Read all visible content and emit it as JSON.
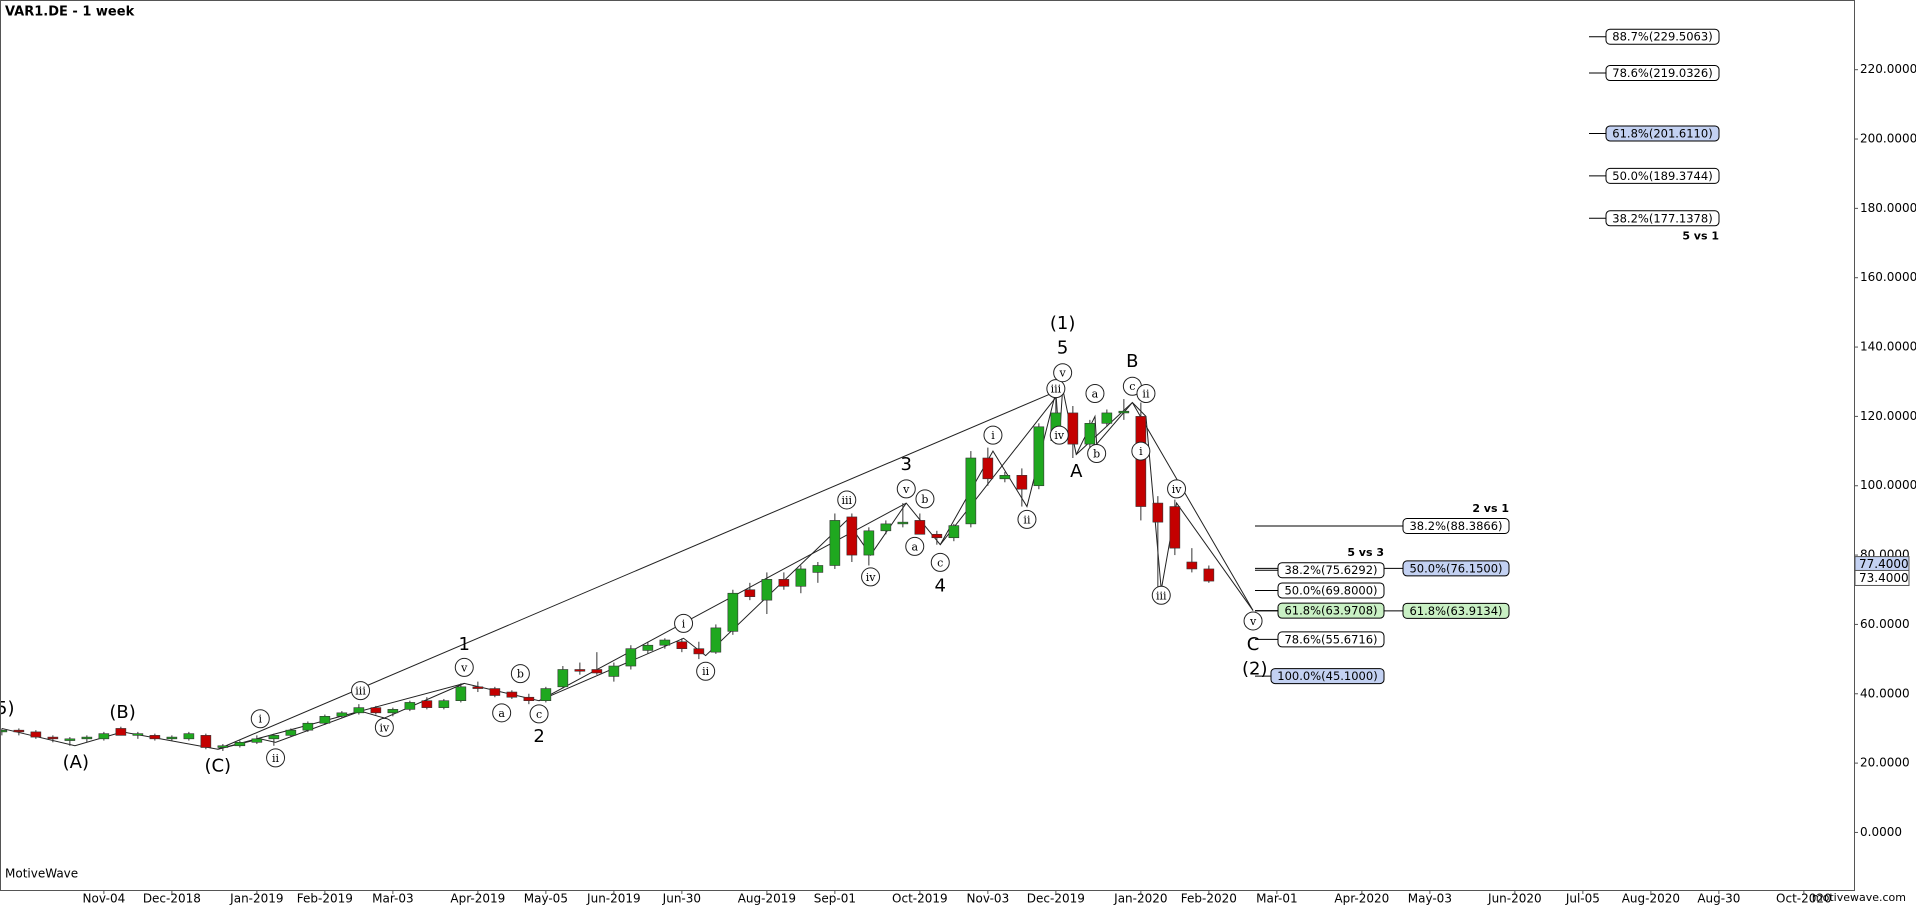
{
  "chart_data": {
    "type": "candlestick",
    "title": "VAR1.DE - 1 week",
    "footer": "MotiveWave",
    "watermark": "motivewave.com",
    "up_color": "#1fa81f",
    "down_color": "#c40000",
    "xlim": [
      -6.11,
      102.95
    ],
    "ylim": [
      -16.6,
      240.1
    ],
    "xticks": [
      {
        "value": 0,
        "label": "Nov-04"
      },
      {
        "value": 4,
        "label": "Dec-2018"
      },
      {
        "value": 9,
        "label": "Jan-2019"
      },
      {
        "value": 13,
        "label": "Feb-2019"
      },
      {
        "value": 17,
        "label": "Mar-03"
      },
      {
        "value": 22,
        "label": "Apr-2019"
      },
      {
        "value": 26,
        "label": "May-05"
      },
      {
        "value": 30,
        "label": "Jun-2019"
      },
      {
        "value": 34,
        "label": "Jun-30"
      },
      {
        "value": 39,
        "label": "Aug-2019"
      },
      {
        "value": 43,
        "label": "Sep-01"
      },
      {
        "value": 48,
        "label": "Oct-2019"
      },
      {
        "value": 52,
        "label": "Nov-03"
      },
      {
        "value": 56,
        "label": "Dec-2019"
      },
      {
        "value": 61,
        "label": "Jan-2020"
      },
      {
        "value": 65,
        "label": "Feb-2020"
      },
      {
        "value": 69,
        "label": "Mar-01"
      },
      {
        "value": 74,
        "label": "Apr-2020"
      },
      {
        "value": 78,
        "label": "May-03"
      },
      {
        "value": 83,
        "label": "Jun-2020"
      },
      {
        "value": 87,
        "label": "Jul-05"
      },
      {
        "value": 91,
        "label": "Aug-2020"
      },
      {
        "value": 95,
        "label": "Aug-30"
      },
      {
        "value": 100,
        "label": "Oct-2020"
      }
    ],
    "yticks": [
      {
        "value": 0,
        "label": "0.0000"
      },
      {
        "value": 20,
        "label": "20.0000"
      },
      {
        "value": 40,
        "label": "40.0000"
      },
      {
        "value": 60,
        "label": "60.0000"
      },
      {
        "value": 80,
        "label": "80.0000"
      },
      {
        "value": 100,
        "label": "100.0000"
      },
      {
        "value": 120,
        "label": "120.0000"
      },
      {
        "value": 140,
        "label": "140.0000"
      },
      {
        "value": 160,
        "label": "160.0000"
      },
      {
        "value": 180,
        "label": "180.0000"
      },
      {
        "value": 200,
        "label": "200.0000"
      },
      {
        "value": 220,
        "label": "220.0000"
      }
    ],
    "price_markers": [
      {
        "value": 77.4,
        "label": "77.4000",
        "color": "#c3d1f2"
      },
      {
        "value": 73.4,
        "label": "73.4000",
        "color": "#ffffff"
      }
    ],
    "candles": {
      "x": [
        -6,
        -5,
        -4,
        -3,
        -2,
        -1,
        0,
        1,
        2,
        3,
        4,
        5,
        6,
        7,
        8,
        9,
        10,
        11,
        12,
        13,
        14,
        15,
        16,
        17,
        18,
        19,
        20,
        21,
        22,
        23,
        24,
        25,
        26,
        27,
        28,
        29,
        30,
        31,
        32,
        33,
        34,
        35,
        36,
        37,
        38,
        39,
        40,
        41,
        42,
        43,
        44,
        45,
        46,
        47,
        48,
        49,
        50,
        51,
        52,
        53,
        54,
        55,
        56,
        57,
        58,
        59,
        60,
        61,
        62,
        63,
        64,
        65
      ],
      "open": [
        29,
        29.5,
        29,
        27.5,
        26.5,
        27,
        27,
        30,
        28,
        28,
        27,
        27,
        28,
        24.5,
        25,
        26,
        27,
        28,
        29.5,
        31.5,
        33.5,
        34.5,
        36,
        34.5,
        35.5,
        38,
        36,
        38,
        42,
        41.5,
        40.5,
        39,
        38,
        42,
        47,
        47,
        45,
        48,
        52.5,
        54,
        55,
        53,
        52,
        58,
        70,
        67,
        73,
        71,
        75,
        77,
        91,
        80,
        87,
        89,
        90,
        86,
        85,
        89,
        108,
        102,
        103,
        100,
        113,
        121,
        112,
        118,
        121,
        120,
        95,
        94,
        78,
        76
      ],
      "high": [
        30,
        30,
        29.5,
        28,
        27.5,
        28,
        29,
        30.5,
        29,
        28.5,
        28,
        29,
        28.5,
        25.5,
        26.5,
        28,
        28.5,
        30,
        32,
        34,
        35,
        37,
        36.5,
        36,
        38,
        39,
        38.5,
        43,
        43.5,
        42,
        41,
        40,
        42,
        48,
        49,
        52,
        49,
        54,
        55,
        56,
        56,
        55,
        60,
        70,
        72,
        75,
        75,
        77,
        78,
        92,
        92,
        88,
        90,
        95,
        92,
        87,
        89,
        110,
        111,
        104,
        105,
        118,
        126,
        123,
        119,
        122,
        125,
        124,
        97,
        96,
        82,
        77
      ],
      "low": [
        28,
        28,
        27,
        26,
        25,
        26,
        26.5,
        28,
        27,
        26.5,
        26.5,
        26.5,
        24,
        23.5,
        24.5,
        25.5,
        25,
        27.5,
        29,
        31,
        33,
        34,
        34,
        33.5,
        35,
        35.5,
        35.5,
        37.5,
        40.5,
        39,
        38.5,
        37,
        37.5,
        41.5,
        45.5,
        45.5,
        43.5,
        47,
        51.5,
        53,
        52,
        50,
        51.5,
        57,
        67,
        63,
        70,
        69,
        72,
        76,
        78,
        77,
        86,
        88,
        86,
        83,
        84,
        88,
        100,
        101,
        94,
        99,
        112,
        108,
        110,
        117,
        119,
        90,
        70,
        80,
        75,
        72
      ],
      "close": [
        29.5,
        29,
        27.5,
        27,
        27,
        27.5,
        28.5,
        28,
        28.5,
        27,
        27.5,
        28.5,
        24.5,
        25,
        26,
        27,
        28,
        29.5,
        31.5,
        33.5,
        34.5,
        36,
        34.5,
        35.5,
        37.5,
        36,
        38,
        42,
        41.5,
        39.5,
        39,
        38,
        41.5,
        47,
        46.5,
        46,
        48,
        53,
        54,
        55.5,
        53,
        51.5,
        59,
        69,
        68,
        73,
        71,
        76,
        77,
        90,
        80,
        87,
        89,
        89.5,
        86,
        85,
        88.5,
        108,
        102,
        103,
        99,
        117,
        121,
        112,
        118,
        121,
        121.5,
        94,
        89.5,
        82,
        76,
        72.5
      ]
    },
    "wave_lines": [
      {
        "x": [
          -6,
          -1.7,
          1.1,
          6.7,
          21.2,
          25.6,
          47.2,
          49.2,
          56.4,
          57.2,
          60.5,
          67.6
        ],
        "y": [
          30,
          25,
          29,
          24,
          43,
          38,
          95,
          83,
          128,
          109,
          124,
          64
        ]
      },
      {
        "x": [
          6.7,
          56.4
        ],
        "y": [
          24,
          128
        ]
      },
      {
        "x": [
          6.7,
          9.2,
          10.1,
          15.1,
          16.5,
          21.2
        ],
        "y": [
          24,
          27,
          26,
          35,
          33,
          43
        ]
      },
      {
        "x": [
          25.6,
          34.1,
          35.4,
          43.7,
          45.1,
          47.2
        ],
        "y": [
          38,
          56,
          51,
          90,
          80,
          95
        ]
      },
      {
        "x": [
          49.2,
          52.3,
          54.3,
          56,
          56.2,
          56.4
        ],
        "y": [
          83,
          110,
          94,
          127,
          113,
          128
        ]
      },
      {
        "x": [
          57.2,
          58.3,
          58.4,
          60.5
        ],
        "y": [
          109,
          120,
          112,
          124
        ]
      },
      {
        "x": [
          60.5,
          61.3,
          62.2,
          63.1,
          67.6
        ],
        "y": [
          124,
          120,
          70,
          95,
          64
        ]
      }
    ],
    "wave_labels": [
      {
        "text": "5)",
        "x": -5.8,
        "y": 35.6
      },
      {
        "text": "(A)",
        "x": -1.65,
        "y": 20
      },
      {
        "text": "(B)",
        "x": 1.1,
        "y": 34.5
      },
      {
        "text": "(C)",
        "x": 6.7,
        "y": 19
      },
      {
        "text": "1",
        "x": 21.2,
        "y": 54
      },
      {
        "text": "2",
        "x": 25.6,
        "y": 27.5
      },
      {
        "text": "3",
        "x": 47.2,
        "y": 106
      },
      {
        "text": "4",
        "x": 49.2,
        "y": 71
      },
      {
        "text": "5",
        "x": 56.4,
        "y": 139.6
      },
      {
        "text": "(1)",
        "x": 56.4,
        "y": 146.7
      },
      {
        "text": "A",
        "x": 57.2,
        "y": 104
      },
      {
        "text": "B",
        "x": 60.5,
        "y": 135.7
      },
      {
        "text": "C",
        "x": 67.6,
        "y": 54
      },
      {
        "text": "(2)",
        "x": 67.7,
        "y": 47
      }
    ],
    "sub_wave_labels": [
      {
        "text": "i",
        "x": 9.2,
        "y": 32.8
      },
      {
        "text": "ii",
        "x": 10.1,
        "y": 21.5
      },
      {
        "text": "iii",
        "x": 15.1,
        "y": 40.9
      },
      {
        "text": "iv",
        "x": 16.5,
        "y": 30.3
      },
      {
        "text": "v",
        "x": 21.2,
        "y": 47.6
      },
      {
        "text": "a",
        "x": 23.4,
        "y": 34.5
      },
      {
        "text": "b",
        "x": 24.5,
        "y": 45.8
      },
      {
        "text": "c",
        "x": 25.6,
        "y": 34.2
      },
      {
        "text": "i",
        "x": 34.1,
        "y": 60.3
      },
      {
        "text": "ii",
        "x": 35.4,
        "y": 46.5
      },
      {
        "text": "iii",
        "x": 43.7,
        "y": 95.9
      },
      {
        "text": "iv",
        "x": 45.1,
        "y": 73.7
      },
      {
        "text": "v",
        "x": 47.2,
        "y": 99.1
      },
      {
        "text": "a",
        "x": 47.7,
        "y": 82.5
      },
      {
        "text": "b",
        "x": 48.3,
        "y": 96.2
      },
      {
        "text": "c",
        "x": 49.2,
        "y": 77.9
      },
      {
        "text": "i",
        "x": 52.3,
        "y": 114.6
      },
      {
        "text": "ii",
        "x": 54.3,
        "y": 90.3
      },
      {
        "text": "iii",
        "x": 56.0,
        "y": 128
      },
      {
        "text": "iv",
        "x": 56.2,
        "y": 114.6
      },
      {
        "text": "v",
        "x": 56.4,
        "y": 132.6
      },
      {
        "text": "a",
        "x": 58.3,
        "y": 126.6
      },
      {
        "text": "b",
        "x": 58.4,
        "y": 109.3
      },
      {
        "text": "c",
        "x": 60.5,
        "y": 128.7
      },
      {
        "text": "ii",
        "x": 61.3,
        "y": 126.6
      },
      {
        "text": "i",
        "x": 61.0,
        "y": 110
      },
      {
        "text": "iii",
        "x": 62.2,
        "y": 68.4
      },
      {
        "text": "iv",
        "x": 63.1,
        "y": 99.1
      },
      {
        "text": "v",
        "x": 67.6,
        "y": 61
      }
    ],
    "fib_groups": [
      {
        "name": "5 vs 1",
        "levels": [
          {
            "value": 229.5063,
            "label": "88.7%(229.5063)",
            "color": "#ffffff"
          },
          {
            "value": 219.0326,
            "label": "78.6%(219.0326)",
            "color": "#ffffff"
          },
          {
            "value": 201.611,
            "label": "61.8%(201.6110)",
            "color": "#c3d1f2"
          },
          {
            "value": 189.3744,
            "label": "50.0%(189.3744)",
            "color": "#ffffff"
          },
          {
            "value": 177.1378,
            "label": "38.2%(177.1378)",
            "color": "#ffffff"
          }
        ]
      },
      {
        "name": "5 vs 3",
        "levels": [
          {
            "value": 75.6292,
            "label": "38.2%(75.6292)",
            "color": "#ffffff"
          },
          {
            "value": 69.8,
            "label": "50.0%(69.8000)",
            "color": "#ffffff"
          },
          {
            "value": 63.9708,
            "label": "61.8%(63.9708)",
            "color": "#c9f0c4"
          },
          {
            "value": 55.6716,
            "label": "78.6%(55.6716)",
            "color": "#ffffff"
          },
          {
            "value": 45.1,
            "label": "100.0%(45.1000)",
            "color": "#c3d1f2"
          }
        ]
      },
      {
        "name": "2 vs 1",
        "levels": [
          {
            "value": 88.3866,
            "label": "38.2%(88.3866)",
            "color": "#ffffff"
          },
          {
            "value": 76.15,
            "label": "50.0%(76.1500)",
            "color": "#c3d1f2"
          },
          {
            "value": 63.9134,
            "label": "61.8%(63.9134)",
            "color": "#c9f0c4"
          }
        ]
      }
    ]
  }
}
